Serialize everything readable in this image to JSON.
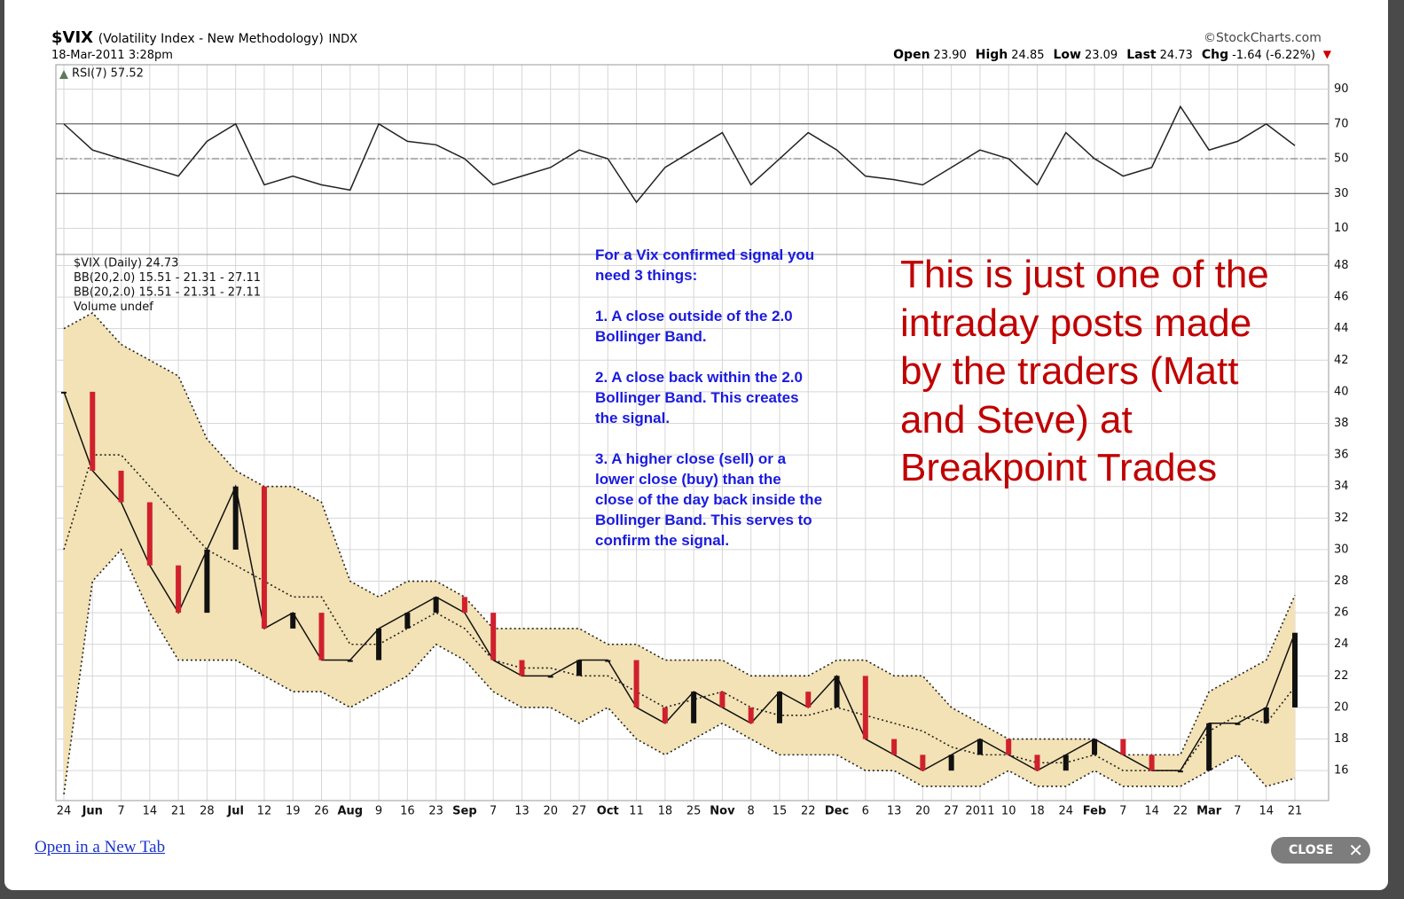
{
  "header": {
    "symbol": "$VIX",
    "name": "(Volatility Index - New Methodology)",
    "exchange": "INDX",
    "timestamp": "18-Mar-2011 3:28pm",
    "brand": "©StockCharts.com",
    "quote": [
      {
        "label": "Open",
        "value": "23.90"
      },
      {
        "label": "High",
        "value": "24.85"
      },
      {
        "label": "Low",
        "value": "23.09"
      },
      {
        "label": "Last",
        "value": "24.73"
      },
      {
        "label": "Chg",
        "value": "-1.64 (-6.22%)"
      }
    ]
  },
  "chart_data": [
    {
      "type": "line",
      "title": "RSI(7) 57.52",
      "categories": [
        "24",
        "Jun",
        "7",
        "14",
        "21",
        "28",
        "Jul",
        "12",
        "19",
        "26",
        "Aug",
        "9",
        "16",
        "23",
        "Sep",
        "7",
        "13",
        "20",
        "27",
        "Oct",
        "11",
        "18",
        "25",
        "Nov",
        "8",
        "15",
        "22",
        "Dec",
        "6",
        "13",
        "20",
        "27",
        "2011",
        "10",
        "18",
        "24",
        "Feb",
        "7",
        "14",
        "22",
        "Mar",
        "7",
        "14",
        "21"
      ],
      "series": [
        {
          "name": "RSI(7)",
          "color": "#222222",
          "values": [
            70,
            55,
            50,
            45,
            40,
            60,
            70,
            35,
            40,
            35,
            32,
            70,
            60,
            58,
            50,
            35,
            40,
            45,
            55,
            50,
            25,
            45,
            55,
            65,
            35,
            50,
            65,
            55,
            40,
            38,
            35,
            45,
            55,
            50,
            35,
            65,
            50,
            40,
            45,
            80,
            55,
            60,
            70,
            57.52
          ]
        }
      ],
      "ylim": [
        -5,
        104
      ],
      "yticks": [
        10,
        30,
        50,
        70,
        90
      ],
      "ref_lines": [
        30,
        70
      ],
      "center_line": 50,
      "grid": true
    },
    {
      "type": "band",
      "title": "$VIX (Daily) 24.73",
      "series": [
        {
          "name": "$VIX (Daily) 24.73",
          "color": "#111111",
          "values": [
            40,
            35,
            33,
            29,
            26,
            30,
            34,
            25,
            26,
            23,
            23,
            25,
            26,
            27,
            26,
            23,
            22,
            22,
            23,
            23,
            20,
            19,
            21,
            20,
            19,
            21,
            20,
            22,
            18,
            17,
            16,
            17,
            18,
            17,
            16,
            17,
            18,
            17,
            16,
            16,
            19,
            19,
            20,
            24.73
          ]
        },
        {
          "name": "BB(20,2.0) 15.51 - 21.31 - 27.11",
          "color": "#c8961e",
          "values": [
            44,
            45,
            43,
            42,
            41,
            37,
            35,
            34,
            34,
            33,
            28,
            27,
            28,
            28,
            27,
            25,
            25,
            25,
            25,
            24,
            24,
            23,
            23,
            23,
            22,
            22,
            22,
            23,
            23,
            22,
            22,
            20,
            19,
            18,
            18,
            18,
            18,
            17,
            17,
            17,
            21,
            22,
            23,
            27.11
          ]
        },
        {
          "name": "BB(20,2.0) 15.51 - 21.31 - 27.11",
          "color": "#000000",
          "values": [
            30,
            36,
            36,
            34,
            32,
            30,
            29,
            28,
            27,
            27,
            24,
            24,
            25,
            26,
            25,
            23,
            22.5,
            22.5,
            22,
            22,
            21,
            20,
            20.5,
            21,
            20,
            19.5,
            19.5,
            20,
            19.5,
            19,
            18.5,
            17.5,
            17,
            17,
            16.5,
            16.5,
            17,
            16,
            16,
            16,
            18.5,
            19.5,
            19,
            21.31
          ]
        },
        {
          "name": "Volume undef",
          "color": "#555555",
          "values": [
            14.5,
            28,
            30,
            26,
            23,
            23,
            23,
            22,
            21,
            21,
            20,
            21,
            22,
            24,
            23,
            21,
            20,
            20,
            19,
            20,
            18,
            17,
            18,
            19,
            18,
            17,
            17,
            17,
            16,
            16,
            15,
            15,
            15,
            16,
            15,
            15,
            16,
            15,
            15,
            15,
            16,
            17,
            15,
            15.51
          ]
        }
      ],
      "ylim": [
        14.1,
        48.7
      ],
      "yticks": [
        16,
        18,
        20,
        22,
        24,
        26,
        28,
        30,
        32,
        34,
        36,
        38,
        40,
        42,
        44,
        46,
        48
      ],
      "band_color": "#f3e2b5",
      "grid": true
    }
  ],
  "annotation": {
    "paragraphs": [
      [
        "For a Vix confirmed signal you",
        "need 3 things:"
      ],
      [
        "1. A close outside of the 2.0",
        "Bollinger Band."
      ],
      [
        "2. A close back within the 2.0",
        "Bollinger Band. This creates",
        "the signal."
      ],
      [
        "3. A higher close (sell) or a",
        "lower close (buy) than the",
        "close of the day back inside the",
        "Bollinger Band. This serves to",
        "confirm the signal."
      ]
    ]
  },
  "callout": {
    "lines": [
      "This is just one of the",
      "intraday posts made",
      "by the traders (Matt",
      "and Steve) at",
      "Breakpoint Trades"
    ]
  },
  "footer": {
    "link": "Open in a New Tab",
    "close": "CLOSE"
  }
}
